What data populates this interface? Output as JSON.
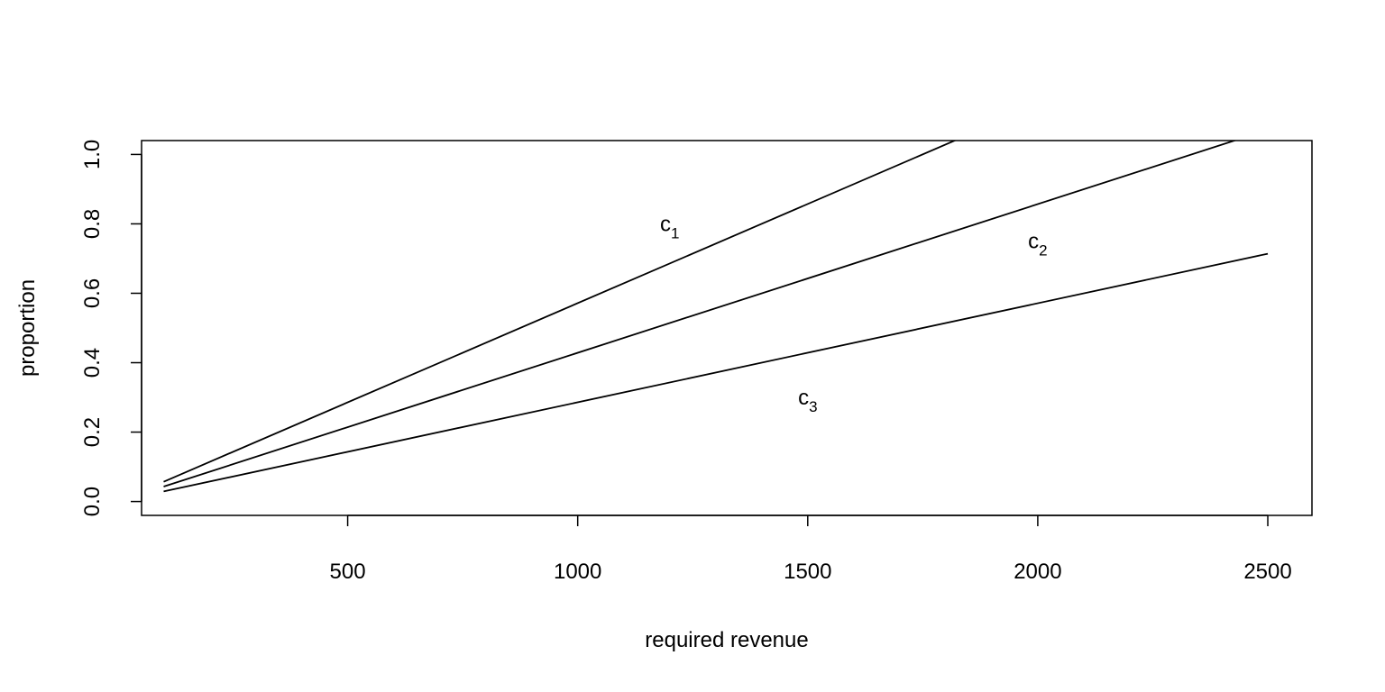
{
  "chart_data": {
    "type": "line",
    "title": "",
    "xlabel": "required revenue",
    "ylabel": "proportion",
    "xlim": [
      52,
      2596
    ],
    "ylim": [
      -0.04,
      1.04
    ],
    "x_ticks": [
      500,
      1000,
      1500,
      2000,
      2500
    ],
    "x_tick_labels": [
      "500",
      "1000",
      "1500",
      "2000",
      "2500"
    ],
    "y_ticks": [
      0.0,
      0.2,
      0.4,
      0.6,
      0.8,
      1.0
    ],
    "y_tick_labels": [
      "0.0",
      "0.2",
      "0.4",
      "0.6",
      "0.8",
      "1.0"
    ],
    "grid": false,
    "legend": "none",
    "line_color": "#000000",
    "series": [
      {
        "name": "c1",
        "label_main": "c",
        "label_sub": "1",
        "label_pos": [
          1200,
          0.8
        ],
        "x": [
          100,
          2500
        ],
        "y": [
          0.057,
          1.429
        ]
      },
      {
        "name": "c2",
        "label_main": "c",
        "label_sub": "2",
        "label_pos": [
          2000,
          0.75
        ],
        "x": [
          100,
          2500
        ],
        "y": [
          0.043,
          1.071
        ]
      },
      {
        "name": "c3",
        "label_main": "c",
        "label_sub": "3",
        "label_pos": [
          1500,
          0.3
        ],
        "x": [
          100,
          2500
        ],
        "y": [
          0.029,
          0.714
        ]
      }
    ]
  }
}
